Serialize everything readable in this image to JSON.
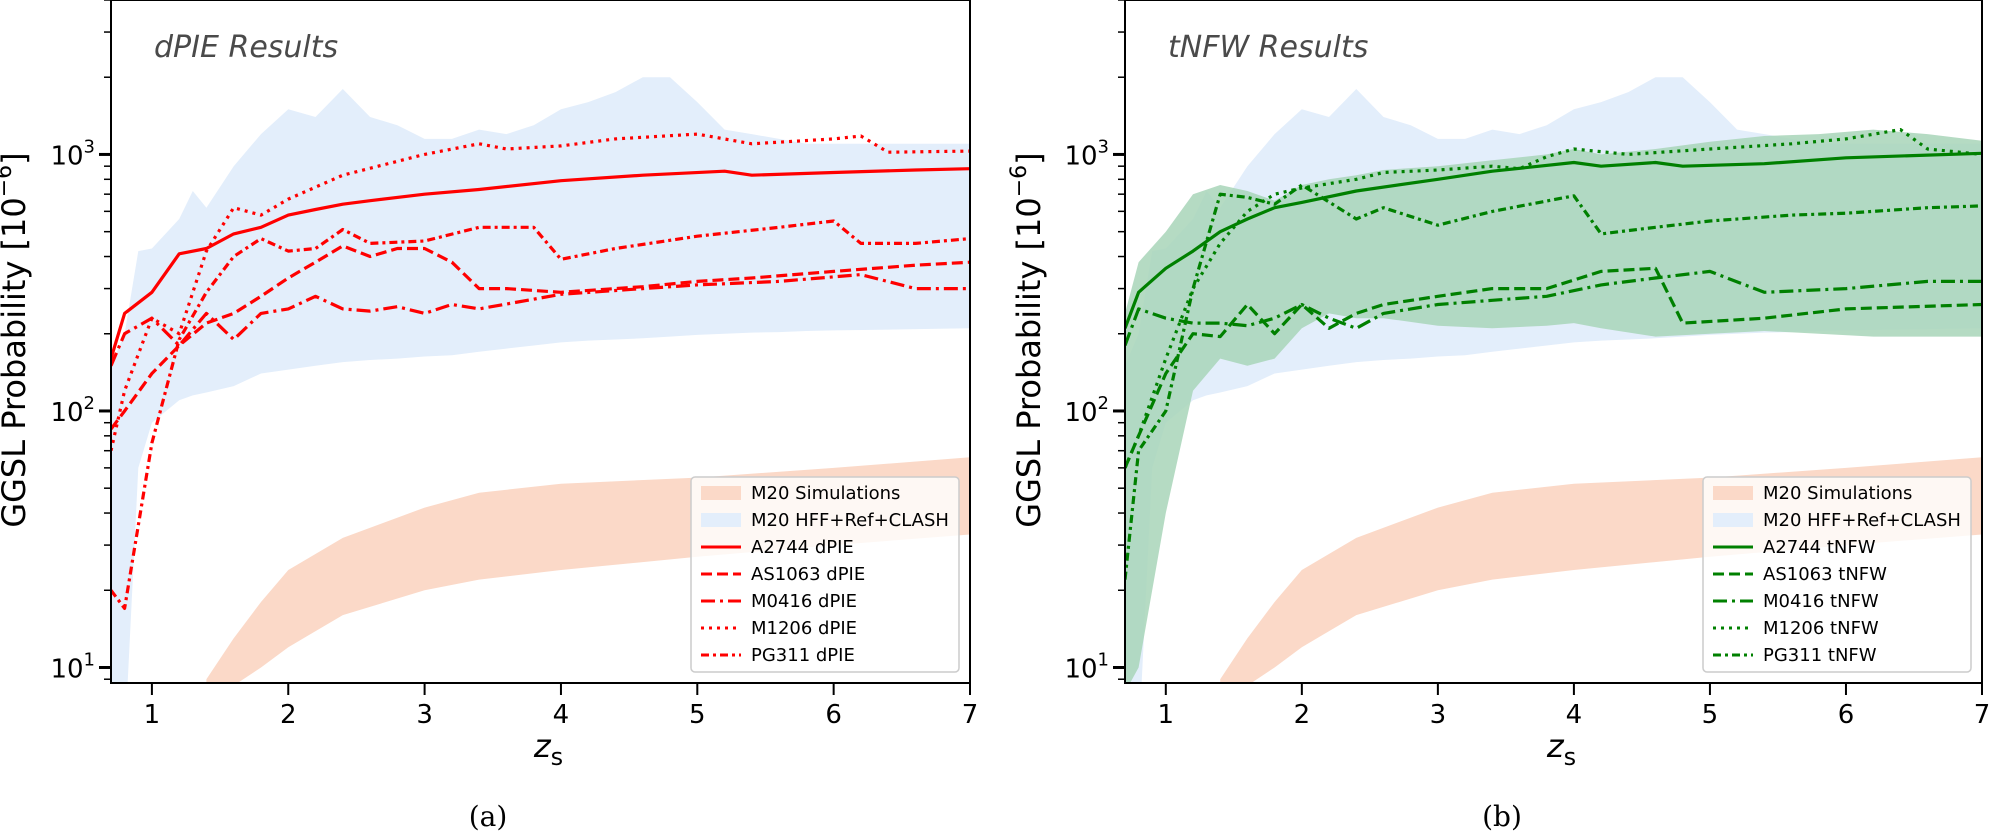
{
  "chart_data": [
    {
      "type": "line",
      "panel_title": "dPIE Results",
      "caption": "(a)",
      "xlabel": "z",
      "xlabel_sub": "s",
      "ylabel": "GGSL Probability [10",
      "ylabel_sup": "−6",
      "ylabel_end": "]",
      "xlim": [
        0.7,
        7
      ],
      "ylim": [
        8.7,
        4000
      ],
      "yscale": "log",
      "x_ticks": [
        "1",
        "2",
        "3",
        "4",
        "5",
        "6",
        "7"
      ],
      "x_tick_values": [
        1,
        2,
        3,
        4,
        5,
        6,
        7
      ],
      "y_ticks": [
        {
          "base": "10",
          "exp": "1",
          "value": 10
        },
        {
          "base": "10",
          "exp": "2",
          "value": 100
        },
        {
          "base": "10",
          "exp": "3",
          "value": 1000
        }
      ],
      "legend_position": "lower-right",
      "bands": [
        {
          "name": "M20 Simulations",
          "color": "#fbd9c8",
          "x": [
            1.4,
            1.6,
            1.8,
            2.0,
            2.4,
            3.0,
            3.4,
            4.0,
            5.0,
            6.0,
            7.0
          ],
          "lower": [
            7,
            8.5,
            10,
            12,
            16,
            20,
            22,
            24,
            27,
            30,
            33
          ],
          "upper": [
            9,
            13,
            18,
            24,
            32,
            42,
            48,
            52,
            55,
            60,
            66
          ]
        },
        {
          "name": "M20 HFF+Ref+CLASH",
          "color": "#e3eefb",
          "x": [
            0.7,
            0.8,
            0.9,
            1.0,
            1.2,
            1.3,
            1.4,
            1.6,
            1.8,
            2.0,
            2.2,
            2.4,
            2.6,
            2.8,
            3.0,
            3.2,
            3.4,
            3.6,
            3.8,
            4.0,
            4.2,
            4.4,
            4.6,
            4.8,
            5.0,
            5.2,
            5.4,
            5.6,
            5.8,
            6.0,
            6.5,
            7.0
          ],
          "lower": [
            5,
            5,
            60,
            90,
            110,
            115,
            118,
            125,
            140,
            145,
            150,
            155,
            158,
            160,
            163,
            165,
            170,
            175,
            180,
            185,
            188,
            190,
            192,
            195,
            198,
            200,
            202,
            203,
            205,
            206,
            208,
            210
          ],
          "upper": [
            150,
            200,
            420,
            430,
            560,
            720,
            620,
            900,
            1200,
            1500,
            1400,
            1800,
            1400,
            1300,
            1150,
            1150,
            1250,
            1200,
            1300,
            1500,
            1600,
            1750,
            2000,
            2000,
            1600,
            1250,
            1200,
            1150,
            1100,
            1100,
            1100,
            1100
          ]
        }
      ],
      "series": [
        {
          "name": "A2744 dPIE",
          "style": "solid",
          "color": "#ff0000",
          "x": [
            0.7,
            0.8,
            1.0,
            1.2,
            1.4,
            1.6,
            1.8,
            2.0,
            2.2,
            2.4,
            2.6,
            3.0,
            3.4,
            4.0,
            4.6,
            5.2,
            5.4,
            6.0,
            6.6,
            7.0
          ],
          "y": [
            160,
            240,
            290,
            410,
            430,
            490,
            520,
            580,
            610,
            640,
            660,
            700,
            730,
            790,
            830,
            860,
            830,
            850,
            870,
            880
          ]
        },
        {
          "name": "AS1063 dPIE",
          "style": "dashed",
          "color": "#ff0000",
          "x": [
            0.7,
            0.8,
            1.0,
            1.2,
            1.4,
            1.6,
            1.8,
            2.0,
            2.2,
            2.4,
            2.6,
            2.8,
            3.0,
            3.2,
            3.4,
            3.6,
            4.0,
            4.6,
            5.0,
            5.4,
            6.0,
            6.6,
            7.0
          ],
          "y": [
            85,
            100,
            140,
            180,
            220,
            240,
            280,
            330,
            380,
            440,
            400,
            430,
            430,
            380,
            300,
            300,
            290,
            305,
            320,
            330,
            350,
            370,
            380
          ]
        },
        {
          "name": "M0416 dPIE",
          "style": "longdash-dot",
          "color": "#ff0000",
          "x": [
            0.7,
            0.8,
            1.0,
            1.2,
            1.4,
            1.6,
            1.8,
            2.0,
            2.2,
            2.4,
            2.6,
            2.8,
            3.0,
            3.2,
            3.4,
            4.0,
            4.6,
            5.0,
            5.6,
            6.2,
            6.6,
            7.0
          ],
          "y": [
            150,
            200,
            230,
            180,
            240,
            190,
            240,
            250,
            280,
            250,
            245,
            255,
            240,
            260,
            250,
            285,
            300,
            310,
            320,
            340,
            300,
            300
          ]
        },
        {
          "name": "M1206 dPIE",
          "style": "dotted",
          "color": "#ff0000",
          "x": [
            0.7,
            0.8,
            1.0,
            1.2,
            1.4,
            1.6,
            1.8,
            2.0,
            2.4,
            3.0,
            3.4,
            3.6,
            4.0,
            4.4,
            5.0,
            5.4,
            6.0,
            6.2,
            6.4,
            7.0
          ],
          "y": [
            70,
            120,
            230,
            200,
            420,
            620,
            580,
            670,
            830,
            1000,
            1100,
            1050,
            1080,
            1150,
            1200,
            1100,
            1150,
            1180,
            1020,
            1030
          ]
        },
        {
          "name": "PG311 dPIE",
          "style": "dashdot",
          "color": "#ff0000",
          "x": [
            0.7,
            0.8,
            1.0,
            1.2,
            1.4,
            1.6,
            1.8,
            2.0,
            2.2,
            2.4,
            2.6,
            3.0,
            3.4,
            3.8,
            4.0,
            4.4,
            5.0,
            5.6,
            6.0,
            6.2,
            6.6,
            7.0
          ],
          "y": [
            20,
            17,
            75,
            190,
            290,
            400,
            470,
            420,
            430,
            510,
            450,
            460,
            520,
            520,
            390,
            430,
            480,
            520,
            550,
            450,
            450,
            470
          ]
        }
      ]
    },
    {
      "type": "line",
      "panel_title": "tNFW Results",
      "caption": "(b)",
      "xlabel": "z",
      "xlabel_sub": "s",
      "ylabel": "GGSL Probability [10",
      "ylabel_sup": "−6",
      "ylabel_end": "]",
      "xlim": [
        0.7,
        7
      ],
      "ylim": [
        8.7,
        4000
      ],
      "yscale": "log",
      "x_ticks": [
        "1",
        "2",
        "3",
        "4",
        "5",
        "6",
        "7"
      ],
      "x_tick_values": [
        1,
        2,
        3,
        4,
        5,
        6,
        7
      ],
      "y_ticks": [
        {
          "base": "10",
          "exp": "1",
          "value": 10
        },
        {
          "base": "10",
          "exp": "2",
          "value": 100
        },
        {
          "base": "10",
          "exp": "3",
          "value": 1000
        }
      ],
      "legend_position": "lower-right",
      "bands": [
        {
          "name": "M20 Simulations",
          "color": "#fbd9c8",
          "x": [
            1.4,
            1.6,
            1.8,
            2.0,
            2.4,
            3.0,
            3.4,
            4.0,
            5.0,
            6.0,
            7.0
          ],
          "lower": [
            7,
            8.5,
            10,
            12,
            16,
            20,
            22,
            24,
            27,
            30,
            33
          ],
          "upper": [
            9,
            13,
            18,
            24,
            32,
            42,
            48,
            52,
            55,
            60,
            66
          ]
        },
        {
          "name": "M20 HFF+Ref+CLASH",
          "color": "#e3eefb",
          "x": [
            0.7,
            0.8,
            0.9,
            1.0,
            1.2,
            1.3,
            1.4,
            1.6,
            1.8,
            2.0,
            2.2,
            2.4,
            2.6,
            2.8,
            3.0,
            3.2,
            3.4,
            3.6,
            3.8,
            4.0,
            4.2,
            4.4,
            4.6,
            4.8,
            5.0,
            5.2,
            5.4,
            5.6,
            5.8,
            6.0,
            6.5,
            7.0
          ],
          "lower": [
            5,
            5,
            60,
            90,
            110,
            115,
            118,
            125,
            140,
            145,
            150,
            155,
            158,
            160,
            163,
            165,
            170,
            175,
            180,
            185,
            188,
            190,
            192,
            195,
            198,
            200,
            202,
            203,
            205,
            206,
            208,
            210
          ],
          "upper": [
            150,
            200,
            420,
            430,
            560,
            720,
            620,
            900,
            1200,
            1500,
            1400,
            1800,
            1400,
            1300,
            1150,
            1150,
            1250,
            1200,
            1300,
            1500,
            1600,
            1750,
            2000,
            2000,
            1600,
            1250,
            1200,
            1150,
            1100,
            1100,
            1100,
            1100
          ]
        },
        {
          "name": "tNFW uncertainty",
          "color": "#a8d5b8",
          "x": [
            0.7,
            0.8,
            1.0,
            1.2,
            1.4,
            1.6,
            1.8,
            2.0,
            2.2,
            2.4,
            2.6,
            3.0,
            3.4,
            3.8,
            4.0,
            4.2,
            4.6,
            5.0,
            5.4,
            5.8,
            6.2,
            6.6,
            7.0
          ],
          "lower": [
            8,
            10,
            40,
            120,
            160,
            150,
            160,
            210,
            240,
            230,
            230,
            215,
            210,
            215,
            220,
            210,
            195,
            200,
            205,
            200,
            195,
            195,
            195
          ],
          "upper": [
            240,
            380,
            500,
            700,
            760,
            720,
            660,
            760,
            800,
            830,
            870,
            900,
            950,
            1000,
            1050,
            1000,
            1050,
            1120,
            1180,
            1200,
            1250,
            1200,
            1130
          ]
        }
      ],
      "series": [
        {
          "name": "A2744 tNFW",
          "style": "solid",
          "color": "#008000",
          "x": [
            0.7,
            0.8,
            1.0,
            1.2,
            1.4,
            1.6,
            1.8,
            2.0,
            2.4,
            3.0,
            3.4,
            4.0,
            4.2,
            4.6,
            4.8,
            5.4,
            6.0,
            7.0
          ],
          "y": [
            210,
            290,
            360,
            420,
            500,
            560,
            620,
            650,
            720,
            800,
            860,
            930,
            900,
            930,
            900,
            920,
            970,
            1010
          ]
        },
        {
          "name": "AS1063 tNFW",
          "style": "dashed",
          "color": "#008000",
          "x": [
            0.7,
            0.8,
            1.0,
            1.2,
            1.4,
            1.6,
            1.8,
            2.0,
            2.2,
            2.4,
            2.6,
            3.0,
            3.4,
            3.8,
            4.2,
            4.6,
            4.8,
            5.4,
            6.0,
            7.0
          ],
          "y": [
            60,
            80,
            140,
            200,
            195,
            260,
            200,
            260,
            210,
            240,
            260,
            280,
            300,
            300,
            350,
            360,
            220,
            230,
            250,
            260
          ]
        },
        {
          "name": "M0416 tNFW",
          "style": "longdash-dot",
          "color": "#008000",
          "x": [
            0.7,
            0.8,
            1.0,
            1.2,
            1.4,
            1.6,
            1.8,
            2.0,
            2.2,
            2.4,
            2.6,
            3.0,
            3.4,
            3.8,
            4.2,
            4.6,
            5.0,
            5.4,
            6.0,
            6.6,
            7.0
          ],
          "y": [
            180,
            250,
            230,
            220,
            220,
            215,
            230,
            260,
            230,
            210,
            240,
            260,
            270,
            280,
            310,
            330,
            350,
            290,
            300,
            320,
            320
          ]
        },
        {
          "name": "M1206 tNFW",
          "style": "dotted",
          "color": "#008000",
          "x": [
            0.7,
            0.8,
            1.0,
            1.2,
            1.4,
            1.6,
            1.8,
            2.0,
            2.4,
            2.6,
            3.0,
            3.4,
            3.6,
            3.8,
            4.0,
            4.4,
            5.0,
            5.6,
            6.0,
            6.4,
            6.6,
            7.0
          ],
          "y": [
            60,
            80,
            160,
            300,
            450,
            600,
            700,
            740,
            800,
            850,
            870,
            900,
            880,
            980,
            1050,
            1000,
            1050,
            1100,
            1150,
            1250,
            1050,
            1000
          ]
        },
        {
          "name": "PG311 tNFW",
          "style": "dashdot",
          "color": "#008000",
          "x": [
            0.7,
            0.8,
            1.0,
            1.2,
            1.4,
            1.6,
            1.8,
            2.0,
            2.4,
            2.6,
            3.0,
            3.4,
            4.0,
            4.2,
            4.6,
            5.0,
            5.6,
            6.0,
            6.6,
            7.0
          ],
          "y": [
            22,
            70,
            100,
            300,
            700,
            680,
            640,
            760,
            560,
            620,
            530,
            600,
            690,
            490,
            520,
            550,
            580,
            590,
            620,
            630
          ]
        }
      ]
    }
  ]
}
